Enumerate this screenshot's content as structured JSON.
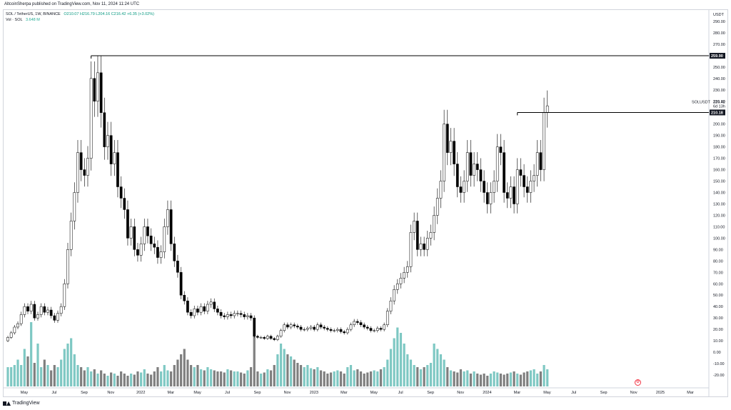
{
  "header": {
    "published": "AltcoinSherpa published on TradingView.com, Nov 11, 2024 11:24 UTC"
  },
  "legend": {
    "symbol": "SOL / TetherUS, 1W, BINANCE",
    "ohlc": "O210.07 H216.79 L204.16 C216.42 +6.35 (+3.02%)",
    "volume_label": "Vol · SOL",
    "volume_value": "3.648 M"
  },
  "footer": {
    "brand": "TradingView"
  },
  "colors": {
    "up_candle": "#ffffff",
    "down_candle": "#000000",
    "vol_up": "#7ec8c3",
    "vol_down": "#7f7f7f",
    "level_line": "#000000",
    "axis_text": "#131722",
    "grid": "#d1d4dc"
  },
  "chart_data": {
    "type": "candlestick",
    "symbol": "SOL / TetherUS",
    "interval": "1W",
    "exchange": "BINANCE",
    "price_axis_unit": "USDT",
    "ylim": [
      -30,
      300
    ],
    "y_ticks": [
      -20,
      -10,
      0,
      10,
      20,
      30,
      40,
      50,
      60,
      70,
      80,
      90,
      100,
      110,
      120,
      130,
      140,
      150,
      160,
      170,
      180,
      190,
      200,
      210,
      220,
      230,
      240,
      250,
      260,
      270,
      280,
      290
    ],
    "y_tick_labels": [
      "-20.00",
      "-10.00",
      "0.00",
      "10.00",
      "20.00",
      "30.00",
      "40.00",
      "50.00",
      "60.00",
      "70.00",
      "80.00",
      "90.00",
      "100.00",
      "110.00",
      "120.00",
      "130.00",
      "140.00",
      "150.00",
      "160.00",
      "170.00",
      "180.00",
      "190.00",
      "200.00",
      "210.00",
      "220.00",
      "230.00",
      "240.00",
      "250.00",
      "260.00",
      "270.00",
      "280.00",
      "290.00"
    ],
    "x_ticks": [
      {
        "label": "May",
        "week": 0
      },
      {
        "label": "Jul",
        "week": 9
      },
      {
        "label": "Sep",
        "week": 18
      },
      {
        "label": "Nov",
        "week": 26
      },
      {
        "label": "2022",
        "week": 35
      },
      {
        "label": "Mar",
        "week": 44
      },
      {
        "label": "May",
        "week": 52
      },
      {
        "label": "Jul",
        "week": 61
      },
      {
        "label": "Sep",
        "week": 70
      },
      {
        "label": "Nov",
        "week": 79
      },
      {
        "label": "2023",
        "week": 87
      },
      {
        "label": "Mar",
        "week": 96
      },
      {
        "label": "May",
        "week": 105
      },
      {
        "label": "Jul",
        "week": 113
      },
      {
        "label": "Sep",
        "week": 122
      },
      {
        "label": "Nov",
        "week": 131
      },
      {
        "label": "2024",
        "week": 139
      },
      {
        "label": "Mar",
        "week": 148
      },
      {
        "label": "May",
        "week": 157
      },
      {
        "label": "Jul",
        "week": 165
      },
      {
        "label": "Sep",
        "week": 174
      },
      {
        "label": "Nov",
        "week": 183
      },
      {
        "label": "2025",
        "week": 191
      },
      {
        "label": "Mar",
        "week": 200
      }
    ],
    "closes": [
      13,
      17,
      22,
      25,
      33,
      40,
      36,
      42,
      30,
      33,
      40,
      35,
      37,
      32,
      28,
      34,
      40,
      60,
      90,
      115,
      140,
      175,
      160,
      155,
      170,
      240,
      220,
      245,
      210,
      180,
      190,
      165,
      175,
      145,
      135,
      125,
      100,
      110,
      90,
      85,
      95,
      110,
      102,
      95,
      92,
      83,
      88,
      110,
      125,
      95,
      80,
      70,
      50,
      45,
      35,
      32,
      38,
      35,
      40,
      36,
      42,
      44,
      38,
      35,
      32,
      31,
      33,
      32,
      34,
      34,
      33,
      31,
      32,
      30,
      14,
      13,
      13,
      12,
      14,
      12,
      11,
      14,
      19,
      24,
      22,
      24,
      23,
      22,
      20,
      20,
      21,
      22,
      20,
      24,
      22,
      21,
      20,
      19,
      19,
      20,
      18,
      17,
      20,
      24,
      27,
      26,
      24,
      22,
      21,
      19,
      19,
      21,
      20,
      24,
      36,
      45,
      55,
      60,
      65,
      70,
      75,
      105,
      115,
      90,
      95,
      90,
      100,
      105,
      120,
      135,
      150,
      200,
      175,
      185,
      165,
      145,
      140,
      150,
      175,
      155,
      165,
      160,
      150,
      140,
      130,
      140,
      150,
      180,
      175,
      140,
      135,
      145,
      130,
      160,
      155,
      145,
      140,
      150,
      155,
      175,
      160,
      210,
      216
    ],
    "opens": [
      10,
      13,
      17,
      22,
      25,
      33,
      40,
      36,
      42,
      30,
      33,
      40,
      35,
      37,
      32,
      28,
      34,
      40,
      60,
      90,
      115,
      140,
      175,
      160,
      155,
      170,
      240,
      220,
      245,
      210,
      180,
      190,
      165,
      175,
      145,
      135,
      125,
      100,
      110,
      90,
      85,
      95,
      110,
      102,
      95,
      92,
      83,
      88,
      110,
      125,
      95,
      80,
      70,
      50,
      45,
      35,
      32,
      38,
      35,
      40,
      36,
      42,
      44,
      38,
      35,
      32,
      31,
      33,
      32,
      34,
      34,
      33,
      31,
      32,
      30,
      14,
      13,
      13,
      12,
      14,
      12,
      11,
      14,
      19,
      24,
      22,
      24,
      23,
      22,
      20,
      20,
      21,
      22,
      20,
      24,
      22,
      21,
      20,
      19,
      19,
      20,
      18,
      17,
      20,
      24,
      27,
      26,
      24,
      22,
      21,
      19,
      19,
      21,
      20,
      24,
      36,
      45,
      55,
      60,
      65,
      70,
      75,
      105,
      115,
      90,
      95,
      90,
      100,
      105,
      120,
      135,
      150,
      200,
      175,
      185,
      165,
      145,
      140,
      150,
      175,
      155,
      165,
      160,
      150,
      140,
      130,
      140,
      150,
      180,
      175,
      140,
      135,
      145,
      130,
      160,
      155,
      145,
      140,
      150,
      155,
      175,
      160,
      210
    ],
    "volumes": [
      18,
      18,
      20,
      25,
      20,
      35,
      28,
      60,
      22,
      40,
      18,
      25,
      20,
      15,
      20,
      18,
      25,
      35,
      40,
      45,
      30,
      20,
      18,
      15,
      18,
      14,
      16,
      12,
      15,
      12,
      10,
      13,
      12,
      10,
      14,
      12,
      10,
      12,
      11,
      14,
      13,
      16,
      12,
      11,
      14,
      18,
      14,
      20,
      15,
      14,
      20,
      25,
      30,
      35,
      25,
      20,
      18,
      20,
      16,
      15,
      18,
      16,
      15,
      14,
      14,
      13,
      16,
      15,
      14,
      14,
      13,
      12,
      15,
      18,
      60,
      14,
      12,
      13,
      16,
      15,
      20,
      30,
      40,
      35,
      30,
      28,
      25,
      22,
      20,
      18,
      20,
      17,
      16,
      18,
      15,
      14,
      12,
      13,
      14,
      15,
      14,
      12,
      18,
      20,
      15,
      16,
      14,
      12,
      13,
      14,
      15,
      14,
      16,
      18,
      25,
      35,
      45,
      55,
      50,
      40,
      30,
      25,
      20,
      18,
      16,
      18,
      20,
      22,
      40,
      35,
      30,
      25,
      18,
      15,
      14,
      13,
      16,
      14,
      15,
      12,
      14,
      12,
      11,
      12,
      10,
      12,
      14,
      13,
      12,
      11,
      12,
      13,
      14,
      12,
      11,
      13,
      14,
      15,
      16,
      12,
      14,
      20,
      16
    ],
    "volume_axis_max": 60,
    "levels": [
      {
        "label": "259.90",
        "value": 259.9,
        "from_week": 25
      },
      {
        "label": "210.18",
        "value": 210.18,
        "from_week": 153
      }
    ],
    "last_price": {
      "symbol": "SOLUSDT",
      "price": "216.42",
      "countdown": "6d 13h",
      "value": 216.42
    }
  }
}
